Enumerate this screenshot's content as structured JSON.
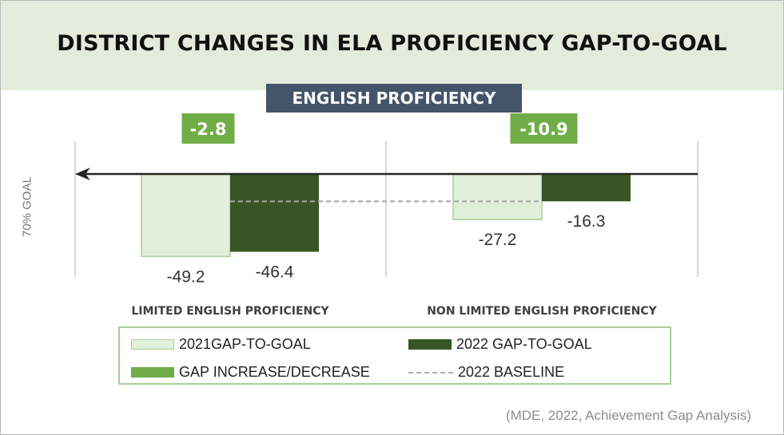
{
  "title": "DISTRICT CHANGES IN ELA PROFICIENCY GAP-TO-GOAL",
  "subtitle": "ENGLISH PROFICIENCY",
  "source": "(MDE, 2022, Achievement Gap Analysis)",
  "colors": {
    "header_bg": "#e3ebdc",
    "badge_bg": "#44546a",
    "series_2021": "#e2efda",
    "series_2021_border": "#a9cf94",
    "series_2022": "#375623",
    "gap_badge": "#70ad47",
    "baseline": "#a6a6a6"
  },
  "chart_data": {
    "type": "bar",
    "ylabel": "70% GOAL",
    "categories": [
      "LIMITED ENGLISH PROFICIENCY",
      "NON LIMITED ENGLISH PROFICIENCY"
    ],
    "series": [
      {
        "name": "2021GAP-TO-GOAL",
        "values": [
          -49.2,
          -27.2
        ],
        "labels": [
          "-49.2",
          "-27.2"
        ]
      },
      {
        "name": "2022 GAP-TO-GOAL",
        "values": [
          -46.4,
          -16.3
        ],
        "labels": [
          "-46.4",
          "-16.3"
        ]
      }
    ],
    "gap_change": {
      "name": "GAP INCREASE/DECREASE",
      "values": [
        -2.8,
        -10.9
      ],
      "labels": [
        "-2.8",
        "-10.9"
      ]
    },
    "baseline": {
      "name": "2022 BASELINE"
    },
    "ylim": [
      -60,
      0
    ],
    "legend_position": "bottom"
  },
  "legend": [
    {
      "key": "series_2021",
      "label": "2021GAP-TO-GOAL"
    },
    {
      "key": "series_2022",
      "label": "2022 GAP-TO-GOAL"
    },
    {
      "key": "gap_badge",
      "label": "GAP INCREASE/DECREASE"
    },
    {
      "key": "baseline",
      "label": "2022 BASELINE"
    }
  ]
}
